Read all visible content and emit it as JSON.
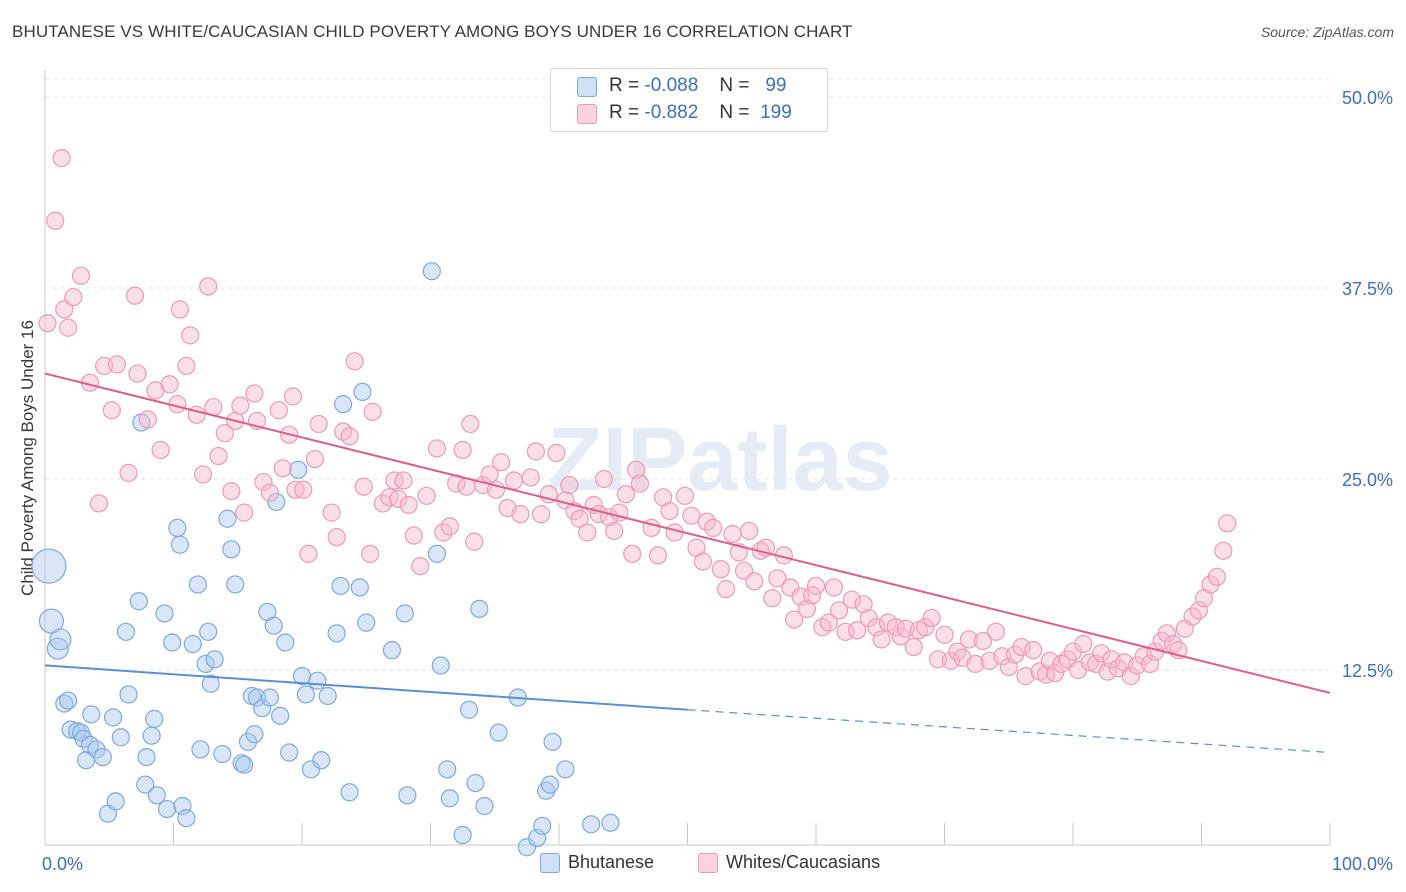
{
  "title": "BHUTANESE VS WHITE/CAUCASIAN CHILD POVERTY AMONG BOYS UNDER 16 CORRELATION CHART",
  "source": "Source: ZipAtlas.com",
  "watermark": "ZIPatlas",
  "legend_top": [
    {
      "r_label": "R =",
      "r_value": "-0.088",
      "n_label": "N =",
      "n_value": "99",
      "color": "#a8c8f0"
    },
    {
      "r_label": "R =",
      "r_value": "-0.882",
      "n_label": "N =",
      "n_value": "199",
      "color": "#f7b8cb"
    }
  ],
  "legend_bottom": [
    {
      "label": "Bhutanese",
      "color": "#a8c8f0"
    },
    {
      "label": "Whites/Caucasians",
      "color": "#f7b8cb"
    }
  ],
  "chart_data": {
    "type": "scatter",
    "xlabel": "",
    "ylabel": "Child Poverty Among Boys Under 16",
    "xlim": [
      0,
      100
    ],
    "ylim": [
      0,
      52
    ],
    "x_tick_labels": [
      "0.0%",
      "100.0%"
    ],
    "y_ticks": [
      12.5,
      25.0,
      37.5,
      50.0
    ],
    "y_tick_labels": [
      "12.5%",
      "25.0%",
      "37.5%",
      "50.0%"
    ],
    "grid": true,
    "series": [
      {
        "name": "Bhutanese",
        "color": "#5b8fd6",
        "fill": "#a8c8f0",
        "trend": {
          "x": [
            0,
            50
          ],
          "y": [
            12.8,
            9.9
          ],
          "dashed_to": [
            100,
            7.1
          ]
        },
        "points": [
          [
            0.3,
            19.3
          ],
          [
            0.5,
            15.7
          ],
          [
            1.0,
            13.9
          ],
          [
            1.2,
            14.5
          ],
          [
            1.5,
            10.3
          ],
          [
            1.8,
            10.5
          ],
          [
            2.0,
            8.6
          ],
          [
            2.5,
            8.5
          ],
          [
            2.8,
            8.4
          ],
          [
            3.0,
            8.0
          ],
          [
            3.2,
            6.6
          ],
          [
            3.5,
            7.6
          ],
          [
            3.6,
            9.6
          ],
          [
            4.0,
            7.3
          ],
          [
            4.5,
            6.8
          ],
          [
            4.9,
            3.1
          ],
          [
            5.3,
            9.4
          ],
          [
            5.5,
            3.9
          ],
          [
            5.9,
            8.1
          ],
          [
            6.3,
            15.0
          ],
          [
            6.5,
            10.9
          ],
          [
            7.3,
            17.0
          ],
          [
            7.5,
            28.7
          ],
          [
            7.8,
            5.0
          ],
          [
            7.9,
            6.8
          ],
          [
            8.3,
            8.2
          ],
          [
            8.5,
            9.3
          ],
          [
            8.7,
            4.3
          ],
          [
            9.3,
            16.2
          ],
          [
            9.5,
            3.4
          ],
          [
            9.9,
            14.3
          ],
          [
            10.3,
            21.8
          ],
          [
            10.5,
            20.7
          ],
          [
            10.7,
            3.6
          ],
          [
            11.0,
            2.8
          ],
          [
            11.5,
            14.2
          ],
          [
            11.9,
            18.1
          ],
          [
            12.1,
            7.3
          ],
          [
            12.5,
            12.9
          ],
          [
            12.7,
            15.0
          ],
          [
            12.9,
            11.6
          ],
          [
            13.2,
            13.2
          ],
          [
            13.8,
            7.0
          ],
          [
            14.2,
            22.4
          ],
          [
            14.5,
            20.4
          ],
          [
            14.8,
            18.1
          ],
          [
            15.3,
            6.4
          ],
          [
            15.5,
            6.3
          ],
          [
            15.8,
            7.8
          ],
          [
            16.1,
            10.8
          ],
          [
            16.3,
            8.3
          ],
          [
            16.5,
            10.7
          ],
          [
            16.9,
            10.0
          ],
          [
            17.3,
            16.3
          ],
          [
            17.5,
            10.7
          ],
          [
            17.8,
            15.4
          ],
          [
            18.0,
            23.5
          ],
          [
            18.3,
            9.5
          ],
          [
            18.7,
            14.3
          ],
          [
            19.0,
            7.1
          ],
          [
            19.7,
            25.6
          ],
          [
            20.0,
            12.1
          ],
          [
            20.3,
            10.9
          ],
          [
            20.7,
            6.0
          ],
          [
            21.2,
            11.8
          ],
          [
            21.5,
            6.6
          ],
          [
            22.0,
            10.8
          ],
          [
            22.7,
            14.9
          ],
          [
            23.0,
            18.0
          ],
          [
            23.2,
            29.9
          ],
          [
            23.7,
            4.5
          ],
          [
            24.5,
            17.9
          ],
          [
            24.7,
            30.7
          ],
          [
            25.0,
            15.6
          ],
          [
            27.0,
            13.8
          ],
          [
            28.0,
            16.2
          ],
          [
            28.2,
            4.3
          ],
          [
            30.1,
            38.6
          ],
          [
            30.5,
            20.1
          ],
          [
            30.8,
            12.8
          ],
          [
            31.3,
            6.0
          ],
          [
            31.5,
            4.1
          ],
          [
            32.5,
            1.7
          ],
          [
            33.0,
            9.9
          ],
          [
            33.5,
            5.1
          ],
          [
            33.8,
            16.5
          ],
          [
            34.2,
            3.6
          ],
          [
            35.3,
            8.4
          ],
          [
            36.8,
            10.7
          ],
          [
            37.5,
            0.9
          ],
          [
            38.3,
            1.5
          ],
          [
            38.7,
            2.3
          ],
          [
            39.0,
            4.6
          ],
          [
            39.3,
            5.0
          ],
          [
            39.5,
            7.8
          ],
          [
            40.5,
            6.0
          ],
          [
            42.5,
            2.4
          ],
          [
            44.0,
            2.5
          ]
        ]
      },
      {
        "name": "Whites/Caucasians",
        "color": "#e05c8a",
        "fill": "#f7b8cb",
        "trend": {
          "x": [
            0,
            100
          ],
          "y": [
            31.9,
            11.0
          ]
        },
        "points": [
          [
            0.2,
            35.2
          ],
          [
            0.8,
            41.9
          ],
          [
            1.3,
            46.0
          ],
          [
            1.5,
            36.1
          ],
          [
            1.8,
            34.9
          ],
          [
            2.2,
            36.9
          ],
          [
            2.8,
            38.3
          ],
          [
            3.5,
            31.3
          ],
          [
            4.2,
            23.4
          ],
          [
            4.6,
            32.4
          ],
          [
            5.2,
            29.5
          ],
          [
            5.6,
            32.5
          ],
          [
            6.5,
            25.4
          ],
          [
            7.0,
            37.0
          ],
          [
            7.2,
            31.9
          ],
          [
            8.0,
            28.9
          ],
          [
            8.6,
            30.8
          ],
          [
            9.0,
            26.9
          ],
          [
            9.7,
            31.2
          ],
          [
            10.3,
            29.9
          ],
          [
            10.5,
            36.1
          ],
          [
            11.0,
            32.4
          ],
          [
            11.3,
            34.4
          ],
          [
            11.8,
            29.2
          ],
          [
            12.3,
            25.3
          ],
          [
            12.7,
            37.6
          ],
          [
            13.1,
            29.7
          ],
          [
            13.5,
            26.5
          ],
          [
            14.0,
            28.0
          ],
          [
            14.5,
            24.2
          ],
          [
            14.8,
            28.8
          ],
          [
            15.2,
            29.8
          ],
          [
            15.5,
            22.8
          ],
          [
            16.3,
            30.6
          ],
          [
            16.5,
            28.8
          ],
          [
            17.0,
            24.8
          ],
          [
            17.5,
            24.1
          ],
          [
            18.2,
            29.5
          ],
          [
            18.5,
            25.7
          ],
          [
            19.0,
            27.9
          ],
          [
            19.3,
            30.4
          ],
          [
            19.5,
            24.3
          ],
          [
            20.1,
            24.3
          ],
          [
            20.5,
            20.1
          ],
          [
            21.0,
            26.3
          ],
          [
            21.3,
            28.6
          ],
          [
            22.3,
            22.8
          ],
          [
            22.7,
            21.2
          ],
          [
            23.2,
            28.1
          ],
          [
            23.7,
            27.8
          ],
          [
            24.1,
            32.7
          ],
          [
            24.8,
            24.5
          ],
          [
            25.3,
            20.1
          ],
          [
            25.5,
            29.4
          ],
          [
            26.3,
            23.4
          ],
          [
            26.8,
            23.8
          ],
          [
            27.2,
            24.9
          ],
          [
            27.5,
            23.7
          ],
          [
            27.9,
            24.9
          ],
          [
            28.3,
            23.3
          ],
          [
            28.7,
            21.3
          ],
          [
            29.2,
            19.3
          ],
          [
            29.7,
            23.9
          ],
          [
            30.5,
            27.0
          ],
          [
            31.0,
            21.5
          ],
          [
            31.5,
            21.9
          ],
          [
            32.0,
            24.7
          ],
          [
            32.5,
            26.9
          ],
          [
            32.8,
            24.5
          ],
          [
            33.1,
            28.6
          ],
          [
            33.4,
            20.9
          ],
          [
            34.1,
            24.6
          ],
          [
            34.6,
            25.3
          ],
          [
            35.1,
            24.3
          ],
          [
            35.5,
            26.1
          ],
          [
            36.0,
            23.1
          ],
          [
            36.5,
            24.9
          ],
          [
            37.0,
            22.7
          ],
          [
            37.8,
            25.1
          ],
          [
            38.2,
            26.8
          ],
          [
            38.6,
            22.7
          ],
          [
            39.2,
            24.0
          ],
          [
            39.8,
            26.7
          ],
          [
            40.5,
            23.6
          ],
          [
            40.8,
            24.6
          ],
          [
            41.2,
            22.9
          ],
          [
            41.6,
            22.4
          ],
          [
            42.2,
            21.5
          ],
          [
            42.7,
            23.3
          ],
          [
            43.1,
            22.7
          ],
          [
            43.5,
            25.0
          ],
          [
            43.9,
            22.5
          ],
          [
            44.3,
            21.6
          ],
          [
            44.7,
            22.8
          ],
          [
            45.2,
            24.0
          ],
          [
            45.7,
            20.1
          ],
          [
            46.0,
            25.6
          ],
          [
            46.3,
            24.7
          ],
          [
            47.2,
            21.8
          ],
          [
            47.7,
            20.0
          ],
          [
            48.1,
            23.8
          ],
          [
            48.6,
            22.9
          ],
          [
            49.0,
            21.5
          ],
          [
            49.8,
            23.9
          ],
          [
            50.3,
            22.6
          ],
          [
            50.7,
            20.5
          ],
          [
            51.2,
            19.6
          ],
          [
            51.5,
            22.2
          ],
          [
            52.0,
            21.8
          ],
          [
            52.6,
            19.1
          ],
          [
            53.0,
            17.8
          ],
          [
            53.5,
            21.4
          ],
          [
            54.0,
            20.2
          ],
          [
            54.4,
            19.0
          ],
          [
            54.8,
            21.6
          ],
          [
            55.2,
            18.3
          ],
          [
            55.7,
            20.3
          ],
          [
            56.1,
            20.5
          ],
          [
            56.6,
            17.2
          ],
          [
            57.0,
            18.5
          ],
          [
            57.5,
            20.0
          ],
          [
            58.0,
            17.9
          ],
          [
            58.3,
            15.8
          ],
          [
            58.8,
            17.3
          ],
          [
            59.3,
            16.5
          ],
          [
            59.7,
            17.4
          ],
          [
            60.0,
            18.0
          ],
          [
            60.5,
            15.3
          ],
          [
            61.0,
            15.6
          ],
          [
            61.4,
            17.9
          ],
          [
            61.8,
            16.4
          ],
          [
            62.3,
            15.0
          ],
          [
            62.8,
            17.1
          ],
          [
            63.2,
            15.1
          ],
          [
            63.7,
            16.8
          ],
          [
            64.1,
            15.9
          ],
          [
            64.7,
            15.3
          ],
          [
            65.1,
            14.5
          ],
          [
            65.6,
            15.6
          ],
          [
            66.2,
            15.3
          ],
          [
            66.6,
            14.7
          ],
          [
            67.0,
            15.2
          ],
          [
            67.6,
            14.0
          ],
          [
            68.0,
            15.1
          ],
          [
            68.5,
            15.3
          ],
          [
            69.0,
            15.9
          ],
          [
            69.5,
            13.2
          ],
          [
            70.0,
            14.8
          ],
          [
            70.5,
            13.1
          ],
          [
            71.0,
            13.7
          ],
          [
            71.4,
            13.3
          ],
          [
            71.9,
            14.5
          ],
          [
            72.4,
            12.9
          ],
          [
            73.0,
            14.4
          ],
          [
            73.5,
            13.1
          ],
          [
            74.0,
            15.0
          ],
          [
            74.5,
            13.4
          ],
          [
            75.0,
            12.7
          ],
          [
            75.5,
            13.5
          ],
          [
            76.0,
            14.0
          ],
          [
            76.3,
            12.1
          ],
          [
            76.9,
            13.8
          ],
          [
            77.4,
            12.4
          ],
          [
            77.9,
            12.2
          ],
          [
            78.2,
            13.1
          ],
          [
            78.6,
            12.3
          ],
          [
            79.1,
            12.9
          ],
          [
            79.6,
            13.2
          ],
          [
            80.0,
            13.7
          ],
          [
            80.4,
            12.5
          ],
          [
            80.8,
            14.2
          ],
          [
            81.3,
            13.0
          ],
          [
            81.8,
            12.9
          ],
          [
            82.2,
            13.6
          ],
          [
            82.7,
            12.4
          ],
          [
            83.0,
            13.2
          ],
          [
            83.5,
            12.6
          ],
          [
            84.0,
            13.0
          ],
          [
            84.5,
            12.1
          ],
          [
            85.0,
            12.8
          ],
          [
            85.5,
            13.4
          ],
          [
            86.0,
            12.9
          ],
          [
            86.4,
            13.7
          ],
          [
            86.9,
            14.4
          ],
          [
            87.3,
            14.9
          ],
          [
            87.8,
            14.2
          ],
          [
            88.2,
            13.8
          ],
          [
            88.7,
            15.2
          ],
          [
            89.3,
            16.0
          ],
          [
            89.8,
            16.4
          ],
          [
            90.2,
            17.2
          ],
          [
            90.7,
            18.1
          ],
          [
            91.2,
            18.6
          ],
          [
            91.7,
            20.3
          ],
          [
            92.0,
            22.1
          ]
        ]
      }
    ]
  }
}
